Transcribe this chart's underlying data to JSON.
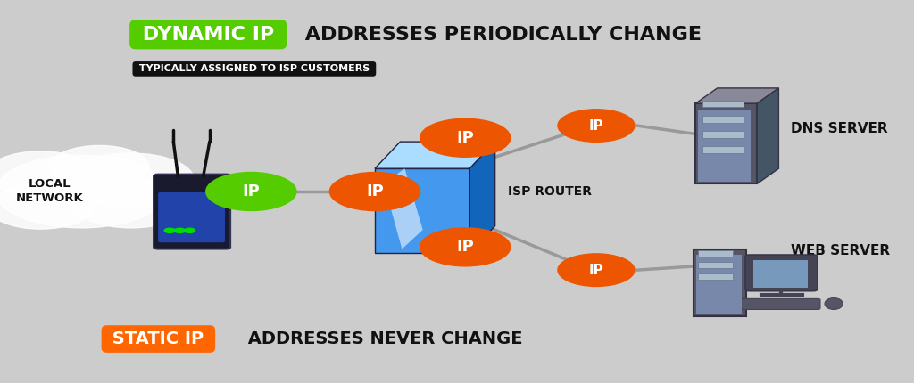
{
  "bg_color": "#cccccc",
  "title_dynamic": "DYNAMIC IP",
  "title_dynamic_rest": " ADDRESSES PERIODICALLY CHANGE",
  "subtitle": "TYPICALLY ASSIGNED TO ISP CUSTOMERS",
  "label_static": "STATIC IP",
  "label_static_rest": " ADDRESSES NEVER CHANGE",
  "dynamic_badge_color": "#55cc00",
  "static_badge_color": "#ff6600",
  "orange_color": "#ee5500",
  "green_color": "#55cc00",
  "text_dark": "#111111",
  "local_network_label": "LOCAL\nNETWORK",
  "isp_router_label": "ISP ROUTER",
  "dns_server_label": "DNS SERVER",
  "web_server_label": "WEB SERVER",
  "ip_label": "IP"
}
